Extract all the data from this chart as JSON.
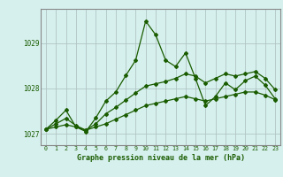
{
  "title": "Graphe pression niveau de la mer (hPa)",
  "bg_color": "#d6f0ee",
  "grid_color": "#b0c4c4",
  "line_color": "#1a5c00",
  "spine_color": "#888888",
  "xlim": [
    -0.5,
    23.5
  ],
  "ylim": [
    1026.75,
    1029.75
  ],
  "yticks": [
    1027,
    1028,
    1029
  ],
  "xticks": [
    0,
    1,
    2,
    3,
    4,
    5,
    6,
    7,
    8,
    9,
    10,
    11,
    12,
    13,
    14,
    15,
    16,
    17,
    18,
    19,
    20,
    21,
    22,
    23
  ],
  "lower_line": [
    1027.1,
    1027.15,
    1027.2,
    1027.15,
    1027.08,
    1027.15,
    1027.22,
    1027.32,
    1027.42,
    1027.52,
    1027.62,
    1027.67,
    1027.72,
    1027.77,
    1027.82,
    1027.77,
    1027.72,
    1027.77,
    1027.82,
    1027.87,
    1027.92,
    1027.92,
    1027.85,
    1027.75
  ],
  "mid_line": [
    1027.1,
    1027.22,
    1027.34,
    1027.18,
    1027.08,
    1027.22,
    1027.44,
    1027.58,
    1027.74,
    1027.9,
    1028.05,
    1028.1,
    1028.15,
    1028.22,
    1028.32,
    1028.27,
    1028.12,
    1028.22,
    1028.32,
    1028.27,
    1028.32,
    1028.37,
    1028.22,
    1027.97
  ],
  "jagged_line": [
    1027.1,
    1027.3,
    1027.52,
    1027.15,
    1027.05,
    1027.35,
    1027.72,
    1027.92,
    1028.28,
    1028.62,
    1029.48,
    1029.18,
    1028.62,
    1028.48,
    1028.78,
    1028.22,
    1027.62,
    1027.82,
    1028.12,
    1027.97,
    1028.17,
    1028.27,
    1028.07,
    1027.77
  ]
}
